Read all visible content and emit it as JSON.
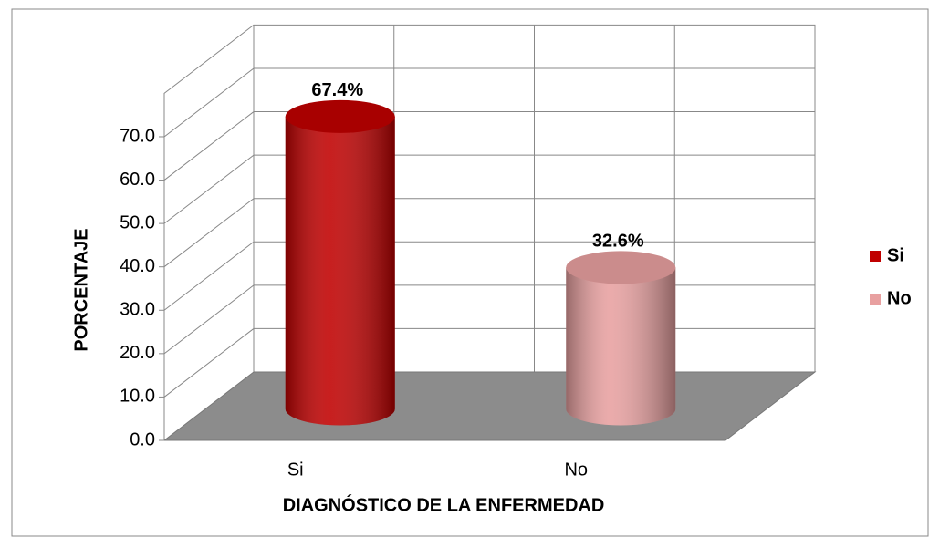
{
  "chart_data": {
    "type": "bar3d",
    "x_label": "DIAGNÓSTICO DE LA ENFERMEDAD",
    "y_label": "PORCENTAJE",
    "categories": [
      "Si",
      "No"
    ],
    "values": [
      67.4,
      32.6
    ],
    "value_labels": [
      "67.4%",
      "32.6%"
    ],
    "colors": [
      "#c00000",
      "#e8a0a0"
    ],
    "ylim": [
      0,
      80
    ],
    "yticks": [
      {
        "value": 0,
        "label": "0.0"
      },
      {
        "value": 10,
        "label": "10.0"
      },
      {
        "value": 20,
        "label": "20.0"
      },
      {
        "value": 30,
        "label": "30.0"
      },
      {
        "value": 40,
        "label": "40.0"
      },
      {
        "value": 50,
        "label": "50.0"
      },
      {
        "value": 60,
        "label": "60.0"
      },
      {
        "value": 70,
        "label": "70.0"
      }
    ],
    "grid": true,
    "legend": "right"
  }
}
